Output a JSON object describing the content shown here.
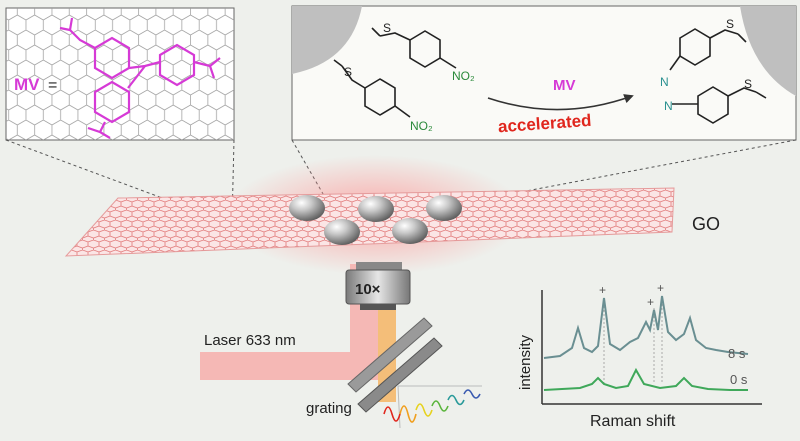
{
  "inset_left": {
    "mv_label": "MV",
    "equals": "="
  },
  "inset_right": {
    "reactant_top": {
      "substituent_s": "S",
      "substituent_no2": "NO₂"
    },
    "reactant_bottom": {
      "substituent_s": "S",
      "substituent_no2": "NO₂"
    },
    "catalyst_label": "MV",
    "arrow_label": "accelerated",
    "product": {
      "azo_n1": "N",
      "azo_n2": "N",
      "s_top": "S",
      "s_bottom": "S"
    }
  },
  "substrate_label": "GO",
  "objective_label": "10×",
  "laser_label": "Laser 633 nm",
  "grating_label": "grating",
  "spectrum": {
    "ylabel": "intensity",
    "xlabel": "Raman shift",
    "trace_top_label": "8 s",
    "trace_bottom_label": "0 s",
    "peak_marker": "+"
  },
  "colors": {
    "magenta": "#d63ad6",
    "red_label": "#e0261d",
    "green": "#2a8a3a",
    "teal": "#2a9090",
    "trace_top": "#6a8f92",
    "trace_bottom": "#3fa85a",
    "laser": "#f5b8b5",
    "beam_orange": "#f4b86d",
    "sheet": "#f2a3a3"
  }
}
